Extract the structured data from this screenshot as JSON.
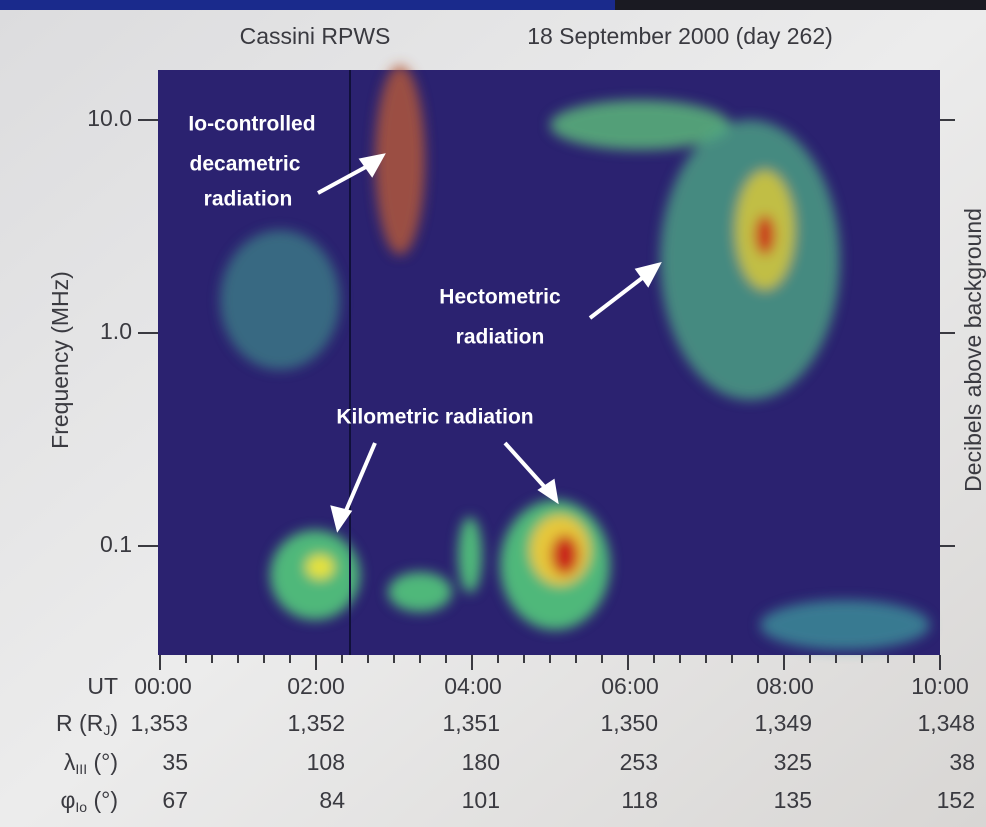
{
  "header": {
    "instrument": "Cassini RPWS",
    "date": "18 September 2000 (day 262)"
  },
  "axes": {
    "y_label": "Frequency (MHz)",
    "y_ticks": [
      "10.0",
      "1.0",
      "0.1"
    ],
    "right_label": "Decibels above background"
  },
  "annotations": {
    "decametric": [
      "Io-controlled",
      "decametric",
      "radiation"
    ],
    "hectometric": [
      "Hectometric",
      "radiation"
    ],
    "kilometric": [
      "Kilometric radiation"
    ]
  },
  "table": {
    "rows": [
      {
        "label": [
          "UT"
        ],
        "values": [
          "00:00",
          "02:00",
          "04:00",
          "06:00",
          "08:00",
          "10:00"
        ]
      },
      {
        "label": [
          "R (R",
          "J",
          ")"
        ],
        "values": [
          "1,353",
          "1,352",
          "1,351",
          "1,350",
          "1,349",
          "1,348"
        ]
      },
      {
        "label": [
          "λ",
          "III",
          " (°)"
        ],
        "values": [
          "35",
          "108",
          "180",
          "253",
          "325",
          "38"
        ]
      },
      {
        "label": [
          "φ",
          "Io",
          " (°)"
        ],
        "values": [
          "67",
          "84",
          "101",
          "118",
          "135",
          "152"
        ]
      }
    ]
  }
}
